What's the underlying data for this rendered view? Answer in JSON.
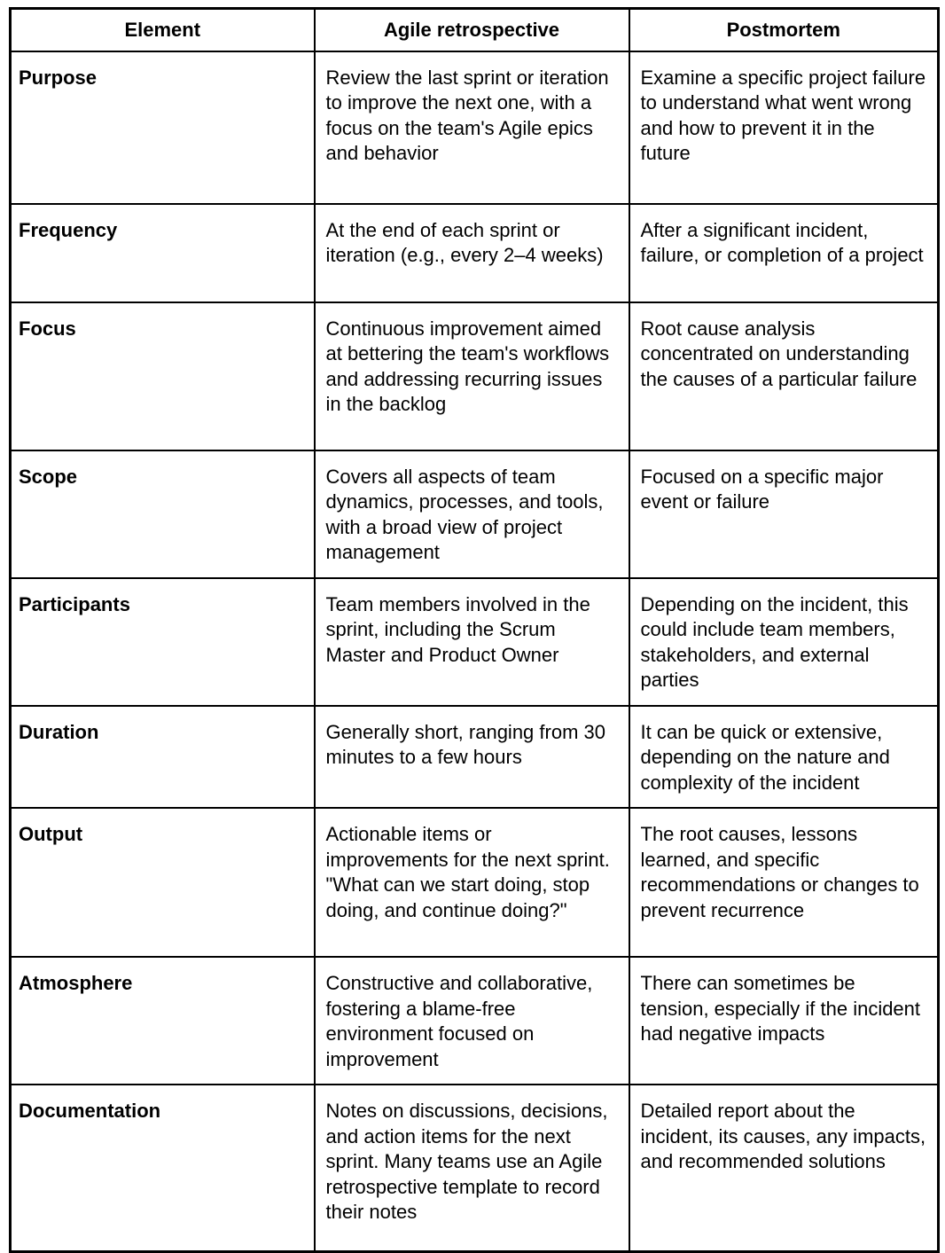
{
  "table": {
    "headers": [
      "Element",
      "Agile retrospective",
      "Postmortem"
    ],
    "rows": [
      {
        "element": "Purpose",
        "agile": "Review the last sprint or iteration to improve the next one, with a focus on the team's Agile epics and behavior",
        "postmortem": "Examine a specific project failure to understand what went wrong and how to prevent it in the future"
      },
      {
        "element": "Frequency",
        "agile": "At the end of each sprint or iteration (e.g., every 2–4 weeks)",
        "postmortem": "After a significant incident, failure, or completion of a project"
      },
      {
        "element": "Focus",
        "agile": "Continuous improvement aimed at bettering the team's workflows and addressing recurring issues in the backlog",
        "postmortem": "Root cause analysis concentrated on understanding the causes of a particular failure"
      },
      {
        "element": "Scope",
        "agile": "Covers all aspects of team dynamics, processes, and tools, with a broad view of project management",
        "postmortem": "Focused on a specific major event or failure"
      },
      {
        "element": "Participants",
        "agile": "Team members involved in the sprint, including the Scrum Master and Product Owner",
        "postmortem": "Depending on the incident, this could include team members, stakeholders, and external parties"
      },
      {
        "element": "Duration",
        "agile": "Generally short, ranging from 30 minutes to a few hours",
        "postmortem": "It can be quick or extensive, depending on the nature and complexity of the incident"
      },
      {
        "element": "Output",
        "agile": "Actionable items or improvements for the next sprint. \"What can we start doing, stop doing, and continue doing?\"",
        "postmortem": "The root causes, lessons learned, and specific recommendations or changes to prevent recurrence"
      },
      {
        "element": "Atmosphere",
        "agile": "Constructive and collaborative, fostering a blame-free environment focused on improvement",
        "postmortem": "There can sometimes be tension, especially if the incident had negative impacts"
      },
      {
        "element": "Documentation",
        "agile": "Notes on discussions, decisions, and action items for the next sprint. Many teams use an Agile retrospective template to record their notes",
        "postmortem": "Detailed report about the incident, its causes, any impacts, and recommended solutions"
      }
    ]
  },
  "colors": {
    "border": "#000000",
    "text": "#000000",
    "background": "#ffffff"
  }
}
